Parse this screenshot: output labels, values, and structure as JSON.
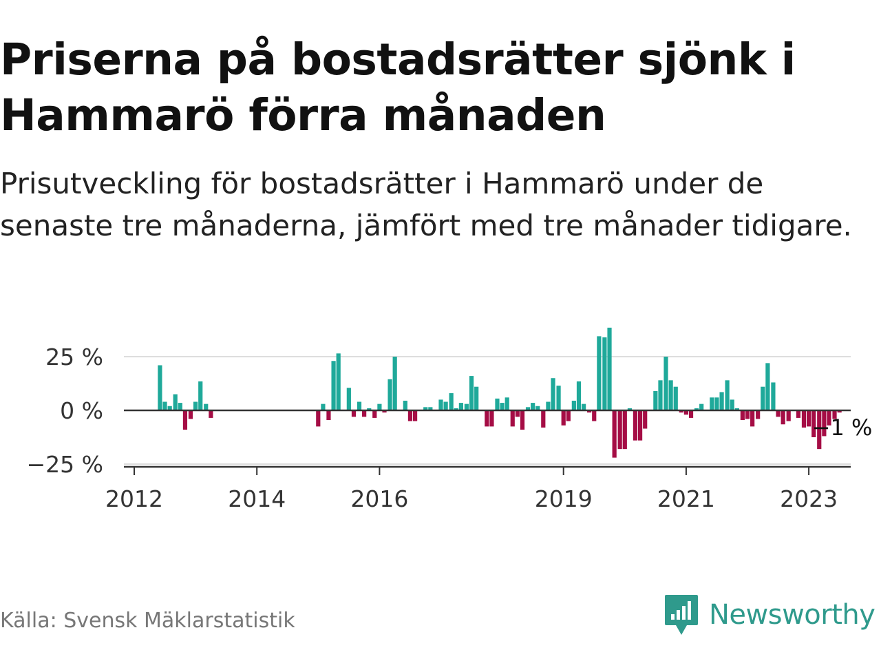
{
  "title": "Priserna på bostadsrätter sjönk i Hammarö förra månaden",
  "subtitle": "Prisutveckling för bostadsrätter i Hammarö under de senaste tre månaderna, jämfört med tre månader tidigare.",
  "source": "Källa: Svensk Mäklarstatistik",
  "brand": {
    "name": "Newsworthy",
    "icon": "newsworthy-logo-icon"
  },
  "colors": {
    "positive": "#1fa99a",
    "negative": "#a50d45",
    "zero_line": "#333333",
    "grid": "#dddddd"
  },
  "chart_data": {
    "type": "bar",
    "title": "",
    "xlabel": "",
    "ylabel": "",
    "ylim": [
      -25,
      38
    ],
    "y_ticks": [
      25,
      0,
      -25
    ],
    "y_tick_labels": [
      "25 %",
      "0 %",
      "−25 %"
    ],
    "x_ticks": [
      2012,
      2014,
      2016,
      2019,
      2021,
      2023
    ],
    "x_tick_labels": [
      "2012",
      "2014",
      "2016",
      "2019",
      "2021",
      "2023"
    ],
    "end_label": "−1 %",
    "grid": true,
    "series": [
      {
        "values": [
          [
            2012.42,
            21
          ],
          [
            2012.5,
            4
          ],
          [
            2012.58,
            2
          ],
          [
            2012.67,
            7.5
          ],
          [
            2012.75,
            3.5
          ],
          [
            2012.83,
            -9
          ],
          [
            2012.92,
            -4
          ],
          [
            2013.0,
            4
          ],
          [
            2013.08,
            13.5
          ],
          [
            2013.17,
            3
          ],
          [
            2013.25,
            -3.5
          ],
          [
            2015.0,
            -7.5
          ],
          [
            2015.08,
            3
          ],
          [
            2015.17,
            -4.5
          ],
          [
            2015.25,
            23
          ],
          [
            2015.33,
            26.5
          ],
          [
            2015.42,
            0
          ],
          [
            2015.5,
            10.5
          ],
          [
            2015.58,
            -3
          ],
          [
            2015.67,
            4
          ],
          [
            2015.75,
            -3
          ],
          [
            2015.83,
            1
          ],
          [
            2015.92,
            -3.5
          ],
          [
            2016.0,
            3
          ],
          [
            2016.08,
            -1
          ],
          [
            2016.17,
            14.5
          ],
          [
            2016.25,
            25
          ],
          [
            2016.33,
            0
          ],
          [
            2016.42,
            4.5
          ],
          [
            2016.5,
            -5
          ],
          [
            2016.58,
            -5
          ],
          [
            2016.75,
            1.5
          ],
          [
            2016.83,
            1.5
          ],
          [
            2017.0,
            5
          ],
          [
            2017.08,
            4
          ],
          [
            2017.17,
            8
          ],
          [
            2017.25,
            1
          ],
          [
            2017.33,
            3.5
          ],
          [
            2017.42,
            3
          ],
          [
            2017.5,
            16
          ],
          [
            2017.58,
            11
          ],
          [
            2017.75,
            -7.5
          ],
          [
            2017.83,
            -7.5
          ],
          [
            2017.92,
            5.5
          ],
          [
            2018.0,
            3.5
          ],
          [
            2018.08,
            6
          ],
          [
            2018.17,
            -7.5
          ],
          [
            2018.25,
            -3
          ],
          [
            2018.33,
            -9
          ],
          [
            2018.42,
            1.5
          ],
          [
            2018.5,
            3.5
          ],
          [
            2018.58,
            2
          ],
          [
            2018.67,
            -8
          ],
          [
            2018.75,
            4
          ],
          [
            2018.83,
            15
          ],
          [
            2018.92,
            11.5
          ],
          [
            2019.0,
            -7
          ],
          [
            2019.08,
            -5
          ],
          [
            2019.17,
            4.5
          ],
          [
            2019.25,
            13.5
          ],
          [
            2019.33,
            3
          ],
          [
            2019.42,
            -1
          ],
          [
            2019.5,
            -5
          ],
          [
            2019.58,
            34.5
          ],
          [
            2019.67,
            34
          ],
          [
            2019.75,
            38.5
          ],
          [
            2019.83,
            -22
          ],
          [
            2019.92,
            -18
          ],
          [
            2020.0,
            -18
          ],
          [
            2020.08,
            1
          ],
          [
            2020.17,
            -14
          ],
          [
            2020.25,
            -14
          ],
          [
            2020.33,
            -8.5
          ],
          [
            2020.5,
            9
          ],
          [
            2020.58,
            14
          ],
          [
            2020.67,
            25
          ],
          [
            2020.75,
            14
          ],
          [
            2020.83,
            11
          ],
          [
            2020.92,
            -1
          ],
          [
            2021.0,
            -2
          ],
          [
            2021.08,
            -3.5
          ],
          [
            2021.17,
            1
          ],
          [
            2021.25,
            3
          ],
          [
            2021.42,
            6
          ],
          [
            2021.5,
            6
          ],
          [
            2021.58,
            8.5
          ],
          [
            2021.67,
            14
          ],
          [
            2021.75,
            5
          ],
          [
            2021.83,
            1
          ],
          [
            2021.92,
            -4.5
          ],
          [
            2022.0,
            -4
          ],
          [
            2022.08,
            -7.5
          ],
          [
            2022.17,
            -4
          ],
          [
            2022.25,
            11
          ],
          [
            2022.33,
            22
          ],
          [
            2022.42,
            13
          ],
          [
            2022.5,
            -3
          ],
          [
            2022.58,
            -6.5
          ],
          [
            2022.67,
            -5
          ],
          [
            2022.83,
            -3.5
          ],
          [
            2022.92,
            -8
          ],
          [
            2023.0,
            -7.5
          ],
          [
            2023.08,
            -12.5
          ],
          [
            2023.17,
            -18
          ],
          [
            2023.25,
            -12
          ],
          [
            2023.33,
            -7
          ],
          [
            2023.42,
            -4
          ],
          [
            2023.5,
            -1
          ]
        ]
      }
    ]
  }
}
